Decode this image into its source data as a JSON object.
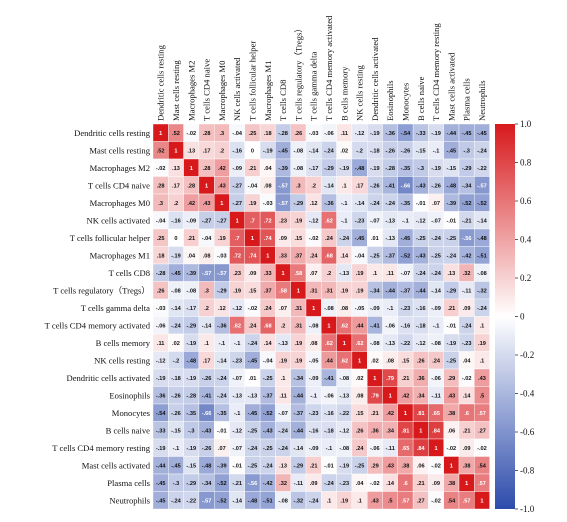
{
  "chart_data": {
    "type": "heatmap",
    "title": "",
    "xlabel": "",
    "ylabel": "",
    "labels": [
      "Dendritic cells resting",
      "Mast cells resting",
      "Macrophages M2",
      "T cells CD4 naive",
      "Macrophages M0",
      "NK cells activated",
      "T cells follicular helper",
      "Macrophages M1",
      "T cells CD8",
      "T cells regulatory（Tregs）",
      "T cells gamma delta",
      "T cells CD4 memory activated",
      "B cells memory",
      "NK cells resting",
      "Dendritic cells activated",
      "Eosinophils",
      "Monocytes",
      "B cells naive",
      "T cells CD4 memory resting",
      "Mast cells activated",
      "Plasma cells",
      "Neutrophils"
    ],
    "values": [
      [
        1,
        0.52,
        -0.02,
        0.28,
        0.3,
        -0.04,
        0.25,
        0.18,
        -0.28,
        0.26,
        -0.03,
        -0.06,
        0.11,
        -0.12,
        -0.19,
        -0.36,
        -0.54,
        -0.33,
        -0.19,
        -0.44,
        -0.45,
        -0.45
      ],
      [
        0.52,
        1,
        0.13,
        0.17,
        0.2,
        -0.16,
        0,
        -0.19,
        -0.45,
        -0.08,
        -0.14,
        -0.24,
        0.02,
        -0.2,
        -0.18,
        -0.26,
        -0.26,
        -0.15,
        -0.1,
        -0.45,
        -0.3,
        -0.24
      ],
      [
        -0.02,
        0.13,
        1,
        0.28,
        0.42,
        -0.09,
        0.21,
        0.04,
        -0.39,
        -0.08,
        -0.17,
        -0.29,
        -0.19,
        -0.48,
        -0.19,
        -0.28,
        -0.35,
        -0.3,
        -0.19,
        -0.15,
        -0.29,
        -0.22
      ],
      [
        0.28,
        0.17,
        0.28,
        1,
        0.43,
        -0.27,
        -0.04,
        0.08,
        -0.57,
        0.3,
        0.2,
        -0.14,
        0.1,
        0.17,
        -0.26,
        -0.41,
        -0.66,
        -0.43,
        -0.26,
        -0.48,
        -0.34,
        -0.57
      ],
      [
        0.3,
        0.2,
        0.42,
        0.43,
        1,
        -0.27,
        0.19,
        -0.03,
        -0.57,
        -0.29,
        0.12,
        -0.36,
        -0.1,
        -0.14,
        -0.24,
        -0.24,
        -0.35,
        -0.01,
        0.07,
        -0.39,
        -0.52,
        -0.52
      ],
      [
        -0.04,
        -0.16,
        -0.09,
        -0.27,
        -0.27,
        1,
        0.7,
        0.72,
        0.23,
        0.19,
        -0.12,
        0.62,
        -0.1,
        -0.23,
        -0.07,
        -0.13,
        -0.1,
        -0.12,
        -0.07,
        -0.01,
        -0.21,
        -0.14
      ],
      [
        0.25,
        0,
        0.21,
        -0.04,
        0.19,
        0.7,
        1,
        0.74,
        0.09,
        0.15,
        -0.02,
        0.24,
        -0.24,
        -0.45,
        0.01,
        -0.13,
        -0.45,
        -0.25,
        -0.24,
        -0.25,
        -0.56,
        -0.48
      ],
      [
        0.18,
        -0.19,
        0.04,
        0.08,
        -0.03,
        0.72,
        0.74,
        1,
        0.33,
        0.37,
        0.24,
        0.68,
        0.14,
        -0.04,
        -0.25,
        -0.37,
        -0.52,
        -0.43,
        -0.25,
        -0.24,
        -0.42,
        -0.51
      ],
      [
        -0.28,
        -0.45,
        -0.39,
        -0.57,
        -0.57,
        0.23,
        0.09,
        0.33,
        1,
        0.58,
        0.07,
        0.2,
        -0.13,
        0.19,
        0.1,
        0.11,
        -0.07,
        -0.24,
        -0.24,
        0.13,
        0.32,
        -0.08
      ],
      [
        0.26,
        -0.08,
        -0.08,
        0.3,
        -0.29,
        0.19,
        0.15,
        0.37,
        0.58,
        1,
        0.31,
        0.31,
        0.19,
        0.19,
        -0.34,
        -0.44,
        -0.37,
        -0.44,
        -0.14,
        -0.29,
        -0.11,
        -0.32
      ],
      [
        -0.03,
        -0.14,
        -0.17,
        0.2,
        0.12,
        -0.12,
        -0.02,
        0.24,
        0.07,
        0.31,
        1,
        -0.08,
        0.08,
        -0.05,
        -0.09,
        -0.1,
        -0.23,
        -0.16,
        -0.09,
        0.21,
        0.09,
        -0.24
      ],
      [
        -0.06,
        -0.24,
        -0.29,
        -0.14,
        -0.36,
        0.62,
        0.24,
        0.68,
        0.2,
        0.31,
        -0.08,
        1,
        0.62,
        0.44,
        -0.41,
        -0.06,
        -0.16,
        -0.18,
        -0.1,
        -0.01,
        -0.24,
        0.1
      ],
      [
        0.11,
        0.02,
        -0.19,
        0.1,
        -0.1,
        -0.1,
        -0.24,
        0.14,
        -0.13,
        0.19,
        0.08,
        0.62,
        1,
        0.62,
        -0.08,
        -0.13,
        -0.22,
        -0.12,
        -0.08,
        -0.19,
        -0.23,
        0.19
      ],
      [
        -0.12,
        -0.2,
        -0.48,
        0.17,
        -0.14,
        -0.23,
        -0.45,
        -0.04,
        0.19,
        0.19,
        -0.05,
        0.44,
        0.62,
        1,
        0.02,
        0.08,
        0.15,
        0.26,
        0.24,
        -0.25,
        0.04,
        0.1
      ],
      [
        -0.19,
        -0.18,
        -0.19,
        -0.26,
        -0.24,
        -0.07,
        0.01,
        -0.25,
        0.1,
        -0.34,
        -0.09,
        -0.41,
        -0.08,
        0.02,
        1,
        0.79,
        0.21,
        0.36,
        -0.06,
        0.29,
        -0.02,
        0.43
      ],
      [
        -0.36,
        -0.26,
        -0.28,
        -0.41,
        -0.24,
        -0.13,
        -0.13,
        -0.37,
        0.11,
        -0.44,
        -0.1,
        -0.06,
        -0.13,
        0.08,
        0.79,
        1,
        0.42,
        0.34,
        -0.11,
        0.43,
        0.14,
        0.5
      ],
      [
        -0.54,
        -0.26,
        -0.35,
        -0.66,
        -0.35,
        -0.1,
        -0.45,
        -0.52,
        -0.07,
        -0.37,
        -0.23,
        -0.16,
        -0.22,
        0.15,
        0.21,
        0.42,
        1,
        0.81,
        0.65,
        0.38,
        0.6,
        0.57
      ],
      [
        -0.33,
        -0.15,
        -0.3,
        -0.43,
        -0.01,
        -0.12,
        -0.25,
        -0.43,
        -0.24,
        -0.44,
        -0.16,
        -0.18,
        -0.12,
        0.26,
        0.36,
        0.34,
        0.81,
        1,
        0.84,
        0.06,
        0.21,
        0.27
      ],
      [
        -0.19,
        -0.1,
        -0.19,
        -0.26,
        0.07,
        -0.07,
        -0.24,
        -0.25,
        -0.24,
        -0.14,
        -0.09,
        -0.1,
        -0.08,
        0.24,
        -0.06,
        -0.11,
        0.65,
        0.84,
        1,
        -0.02,
        0.09,
        -0.02
      ],
      [
        -0.44,
        -0.45,
        -0.15,
        -0.48,
        -0.39,
        -0.01,
        -0.25,
        -0.24,
        0.13,
        -0.29,
        0.21,
        -0.01,
        -0.19,
        -0.25,
        0.29,
        0.43,
        0.38,
        0.06,
        -0.02,
        1,
        0.38,
        0.54
      ],
      [
        -0.45,
        -0.3,
        -0.29,
        -0.34,
        -0.52,
        -0.21,
        -0.56,
        -0.42,
        0.32,
        -0.11,
        0.09,
        -0.24,
        -0.23,
        0.04,
        -0.02,
        0.14,
        0.6,
        0.21,
        0.09,
        0.38,
        1,
        0.57
      ],
      [
        -0.45,
        -0.24,
        -0.22,
        -0.57,
        -0.52,
        -0.14,
        -0.48,
        -0.51,
        -0.08,
        -0.32,
        -0.24,
        0.1,
        0.19,
        0.1,
        0.43,
        0.5,
        0.57,
        0.27,
        -0.02,
        0.54,
        0.57,
        1
      ]
    ],
    "colorbar": {
      "min": -1.0,
      "max": 1.0,
      "ticks": [
        "1.0",
        "0.8",
        "0.6",
        "0.4",
        "0.2",
        "0",
        "-0.2",
        "-0.4",
        "-0.6",
        "-0.8",
        "-1.0"
      ],
      "colors": {
        "neg": "#2c4bab",
        "mid": "#ffffff",
        "pos": "#d7191c"
      }
    }
  }
}
